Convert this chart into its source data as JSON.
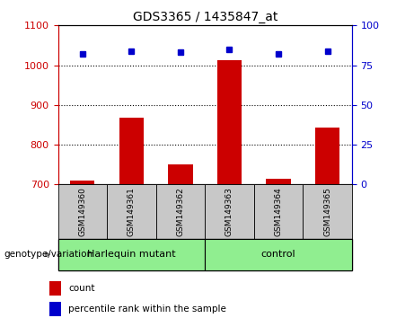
{
  "title": "GDS3365 / 1435847_at",
  "samples": [
    "GSM149360",
    "GSM149361",
    "GSM149362",
    "GSM149363",
    "GSM149364",
    "GSM149365"
  ],
  "bar_values": [
    710,
    868,
    750,
    1013,
    715,
    843
  ],
  "scatter_values": [
    82,
    84,
    83,
    85,
    82,
    84
  ],
  "ylim_left": [
    700,
    1100
  ],
  "ylim_right": [
    0,
    100
  ],
  "yticks_left": [
    700,
    800,
    900,
    1000,
    1100
  ],
  "yticks_right": [
    0,
    25,
    50,
    75,
    100
  ],
  "bar_color": "#cc0000",
  "scatter_color": "#0000cc",
  "bar_width": 0.5,
  "group1_label": "Harlequin mutant",
  "group2_label": "control",
  "group_bg_color": "#90ee90",
  "tick_area_color": "#c8c8c8",
  "legend_count_label": "count",
  "legend_pct_label": "percentile rank within the sample",
  "xlabel": "genotype/variation",
  "left_tick_color": "#cc0000",
  "right_tick_color": "#0000cc",
  "title_fontsize": 10,
  "axis_fontsize": 8,
  "legend_fontsize": 7.5
}
